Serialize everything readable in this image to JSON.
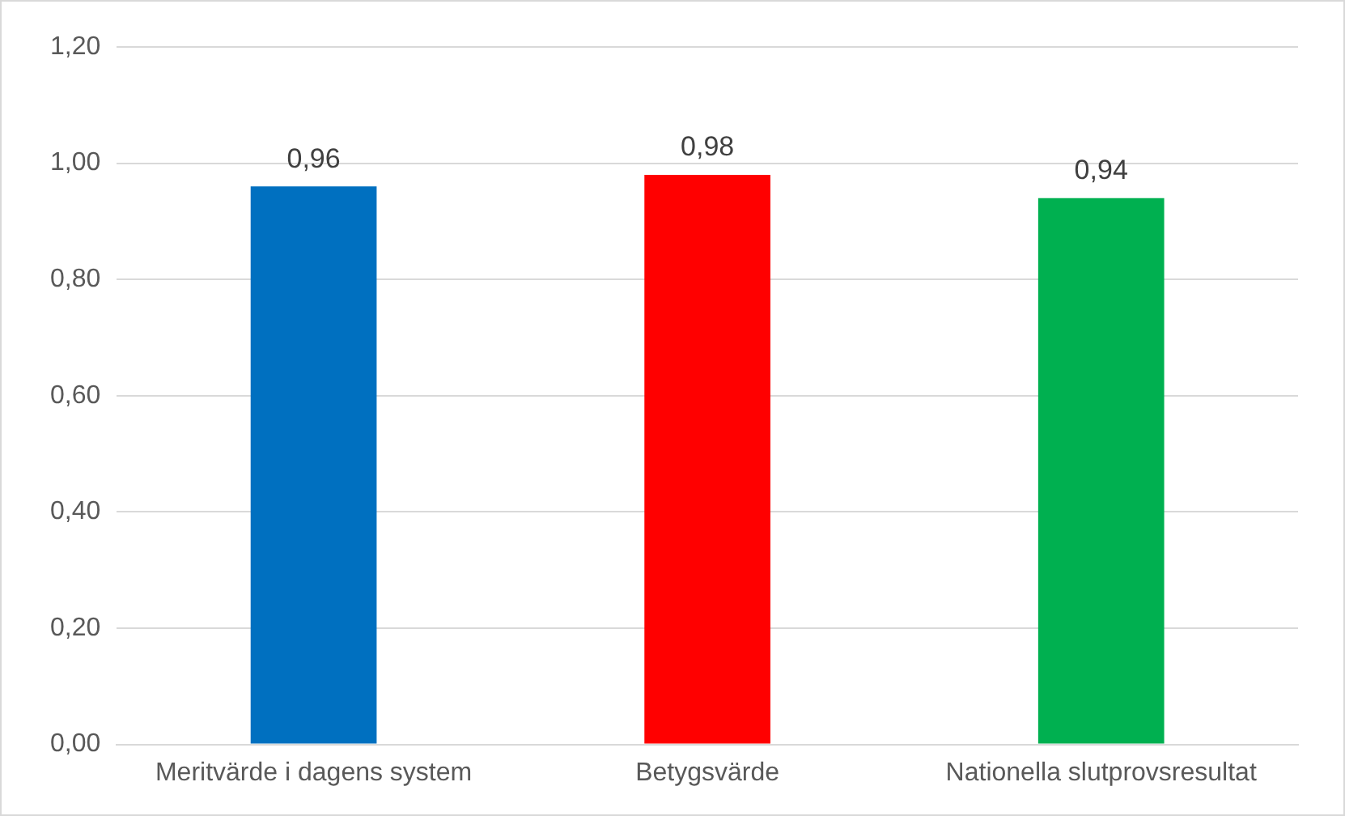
{
  "chart_data": {
    "type": "bar",
    "categories": [
      "Meritvärde i dagens system",
      "Betygsvärde",
      "Nationella slutprovsresultat"
    ],
    "values": [
      0.96,
      0.98,
      0.94
    ],
    "colors": [
      "#0070c0",
      "#ff0000",
      "#00b050"
    ],
    "value_labels": [
      "0,96",
      "0,98",
      "0,94"
    ],
    "ylim": [
      0,
      1.2
    ],
    "yticks": [
      {
        "value": 0,
        "label": "0,00"
      },
      {
        "value": 0.2,
        "label": "0,20"
      },
      {
        "value": 0.4,
        "label": "0,40"
      },
      {
        "value": 0.6,
        "label": "0,60"
      },
      {
        "value": 0.8,
        "label": "0,80"
      },
      {
        "value": 1,
        "label": "1,00"
      },
      {
        "value": 1.2,
        "label": "1,20"
      }
    ],
    "grid": "y",
    "legend": false
  }
}
